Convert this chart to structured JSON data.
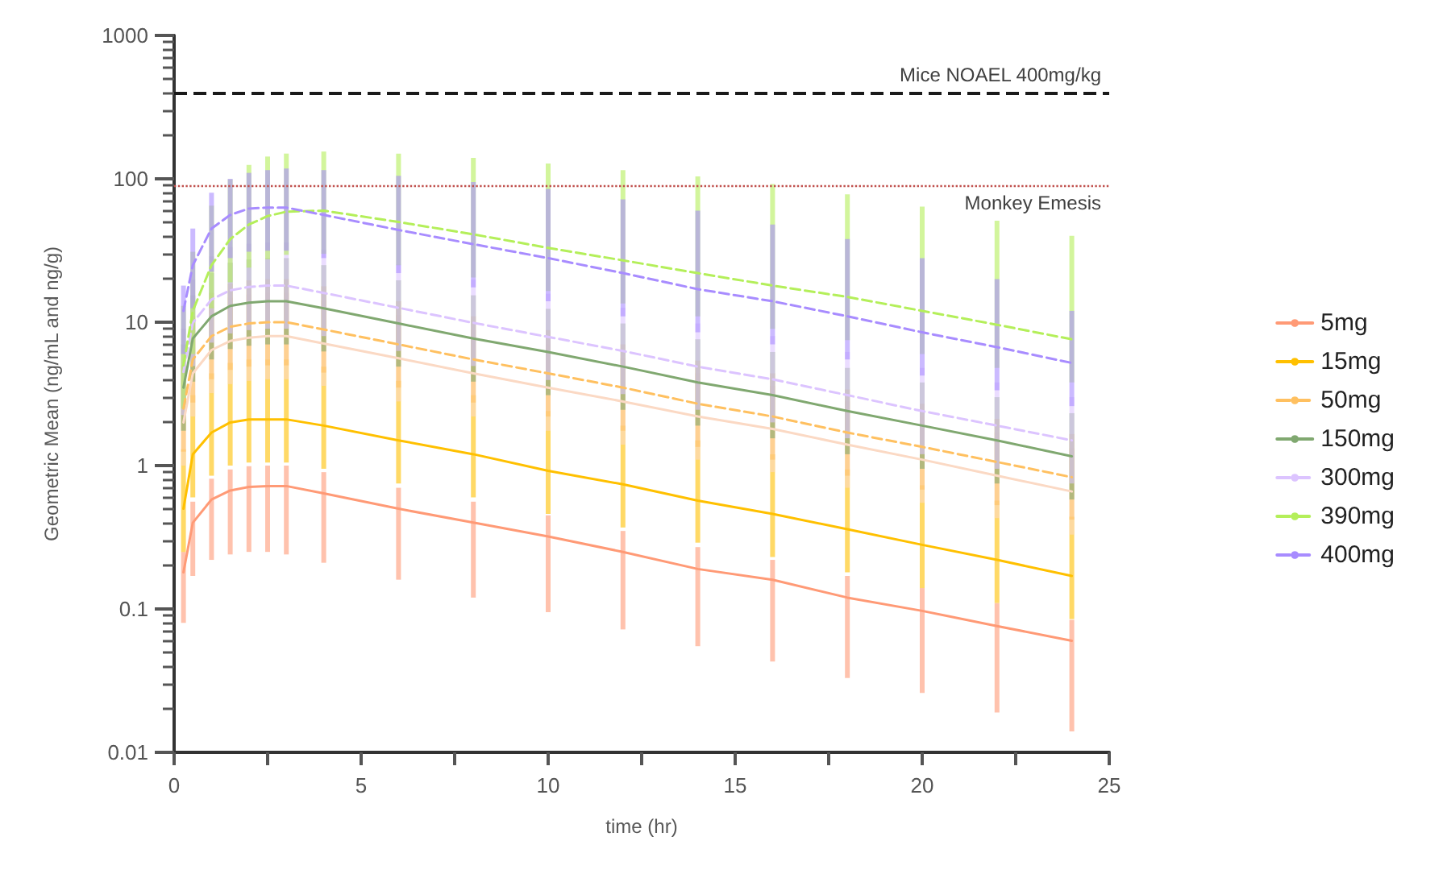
{
  "chart_data": {
    "type": "line",
    "xlabel": "time (hr)",
    "ylabel": "Geometric Mean (ng/mL and ng/g)",
    "log": "y",
    "grid": false,
    "legend": "right",
    "marker": "none",
    "xlim": [
      0,
      25
    ],
    "xticks": [
      0,
      {
        "value": 2.5,
        "label": null
      },
      5,
      {
        "value": 7.5,
        "label": null
      },
      10,
      {
        "value": 12.5,
        "label": null
      },
      15,
      {
        "value": 17.5,
        "label": null
      },
      20,
      {
        "value": 22.5,
        "label": null
      },
      25
    ],
    "ylim": [
      0.01,
      1000
    ],
    "yticks": [
      0.01,
      0.1,
      1,
      10,
      100,
      1000
    ],
    "x": [
      0.25,
      0.5,
      1,
      1.5,
      2,
      2.5,
      3,
      4,
      6,
      8,
      10,
      12,
      14,
      16,
      18,
      20,
      22,
      24
    ],
    "ref_lines": [
      {
        "axis": "y",
        "value": 400,
        "label": "Mice NOAEL 400mg/kg",
        "color": "#1a1a1a",
        "line_style": "dashed"
      },
      {
        "axis": "y",
        "value": 90,
        "label": "Monkey Emesis",
        "color": "#c0504d",
        "line_style": "dotted"
      }
    ],
    "series": [
      {
        "name": "5mg",
        "color": "#ff9a76",
        "line_style": "solid",
        "values": [
          0.18,
          0.4,
          0.58,
          0.67,
          0.71,
          0.72,
          0.72,
          0.64,
          0.5,
          0.4,
          0.32,
          0.25,
          0.19,
          0.16,
          0.12,
          0.097,
          0.076,
          0.06
        ],
        "lower": [
          0.08,
          0.17,
          0.22,
          0.24,
          0.25,
          0.25,
          0.24,
          0.21,
          0.16,
          0.12,
          0.095,
          0.072,
          0.055,
          0.043,
          0.033,
          0.026,
          0.019,
          0.014
        ],
        "upper": [
          0.25,
          0.56,
          0.81,
          0.94,
          0.99,
          1.0,
          1.0,
          0.9,
          0.7,
          0.56,
          0.45,
          0.35,
          0.27,
          0.22,
          0.17,
          0.14,
          0.11,
          0.084
        ]
      },
      {
        "name": "15mg",
        "color": "#ffc000",
        "line_style": "solid",
        "values": [
          0.5,
          1.2,
          1.7,
          2,
          2.1,
          2.1,
          2.1,
          1.9,
          1.5,
          1.2,
          0.92,
          0.74,
          0.57,
          0.46,
          0.36,
          0.28,
          0.22,
          0.17
        ],
        "lower": [
          0.25,
          0.6,
          0.85,
          1,
          1.05,
          1.05,
          1.05,
          0.95,
          0.75,
          0.6,
          0.46,
          0.37,
          0.29,
          0.23,
          0.18,
          0.14,
          0.11,
          0.085
        ],
        "upper": [
          1.3,
          3.1,
          4.4,
          5.2,
          5.5,
          5.5,
          5.5,
          4.9,
          3.9,
          3.1,
          2.4,
          1.9,
          1.5,
          1.2,
          0.94,
          0.73,
          0.57,
          0.44
        ]
      },
      {
        "color": "#fbd9c4",
        "line_style": "solid",
        "values": [
          2,
          4.4,
          6.4,
          7.4,
          7.8,
          8,
          8,
          7.1,
          5.6,
          4.4,
          3.5,
          2.8,
          2.2,
          1.8,
          1.4,
          1.1,
          0.85,
          0.66
        ],
        "lower": [
          1,
          2.2,
          3.2,
          3.7,
          3.9,
          4,
          4,
          3.6,
          2.8,
          2.2,
          1.75,
          1.4,
          1.1,
          0.9,
          0.7,
          0.55,
          0.43,
          0.33
        ],
        "upper": [
          4,
          8.8,
          12.8,
          14.8,
          15.6,
          16,
          16,
          14.2,
          11.2,
          8.8,
          7,
          5.6,
          4.4,
          3.6,
          2.8,
          2.2,
          1.7,
          1.32
        ]
      },
      {
        "name": "50mg",
        "color": "#ffc060",
        "line_style": "dashed",
        "values": [
          2.5,
          5.5,
          8,
          9.3,
          9.8,
          10,
          10,
          8.9,
          7,
          5.5,
          4.4,
          3.5,
          2.7,
          2.2,
          1.7,
          1.35,
          1.06,
          0.83
        ],
        "lower": [
          1.25,
          2.75,
          4,
          4.65,
          4.9,
          5,
          5,
          4.45,
          3.5,
          2.75,
          2.2,
          1.75,
          1.35,
          1.1,
          0.85,
          0.68,
          0.53,
          0.42
        ],
        "upper": [
          5,
          11,
          16,
          18.6,
          19.6,
          20,
          20,
          17.8,
          14,
          11,
          8.8,
          7,
          5.4,
          4.4,
          3.4,
          2.7,
          2.12,
          1.66
        ]
      },
      {
        "name": "150mg",
        "color": "#80a870",
        "line_style": "solid",
        "values": [
          3.5,
          7.7,
          11,
          13,
          13.7,
          14,
          14,
          12.5,
          9.8,
          7.7,
          6.2,
          4.9,
          3.8,
          3.1,
          2.4,
          1.9,
          1.5,
          1.16
        ],
        "lower": [
          1.75,
          3.85,
          5.5,
          6.5,
          6.85,
          7,
          7,
          6.25,
          4.9,
          3.85,
          3.1,
          2.45,
          1.9,
          1.55,
          1.2,
          0.95,
          0.75,
          0.58
        ],
        "upper": [
          7,
          15.4,
          22,
          26,
          27.4,
          28,
          28,
          25,
          19.6,
          15.4,
          12.4,
          9.8,
          7.6,
          6.2,
          4.8,
          3.8,
          3,
          2.32
        ]
      },
      {
        "name": "300mg",
        "color": "#dcc4ff",
        "line_style": "dashed",
        "values": [
          4.5,
          9.9,
          14.4,
          16.7,
          17.6,
          18,
          18,
          16,
          12.6,
          9.9,
          7.9,
          6.3,
          4.9,
          4,
          3.1,
          2.4,
          1.9,
          1.5
        ],
        "lower": [
          2.25,
          4.95,
          7.2,
          8.35,
          8.8,
          9,
          9,
          8,
          6.3,
          4.95,
          3.95,
          3.15,
          2.45,
          2,
          1.55,
          1.2,
          0.95,
          0.75
        ],
        "upper": [
          9,
          19.8,
          28.8,
          33.4,
          35.2,
          36,
          36,
          32,
          25.2,
          19.8,
          15.8,
          12.6,
          9.8,
          8,
          6.2,
          4.8,
          3.8,
          3
        ]
      },
      {
        "name": "390mg",
        "color": "#b4ef5a",
        "line_style": "dashed",
        "values": [
          5,
          12,
          25,
          38,
          48,
          55,
          59,
          60,
          50,
          41,
          33,
          27,
          22,
          18,
          15,
          12,
          9.6,
          7.6
        ],
        "lower": [
          2.5,
          6,
          12.5,
          19,
          24,
          27.5,
          29.5,
          30,
          25,
          20.5,
          16.5,
          13.5,
          11,
          9,
          7.5,
          6,
          4.8,
          3.8
        ],
        "upper": [
          13,
          31,
          65,
          99,
          125,
          143,
          150,
          155,
          150,
          140,
          128,
          115,
          104,
          92,
          78,
          64,
          51,
          40
        ]
      },
      {
        "name": "400mg",
        "color": "#a88cff",
        "line_style": "dashed",
        "values": [
          12,
          25,
          45,
          56,
          62,
          63,
          63,
          56,
          44,
          35,
          28,
          22,
          17,
          14,
          11,
          8.5,
          6.7,
          5.2
        ],
        "lower": [
          6,
          12.5,
          22.5,
          28,
          31,
          31.5,
          31.5,
          28,
          22,
          17.5,
          14,
          11,
          8.5,
          7,
          5.5,
          4.25,
          3.35,
          2.6
        ],
        "upper": [
          18,
          45,
          80,
          100,
          110,
          115,
          118,
          115,
          105,
          95,
          85,
          72,
          60,
          48,
          38,
          28,
          20,
          12
        ]
      }
    ]
  }
}
